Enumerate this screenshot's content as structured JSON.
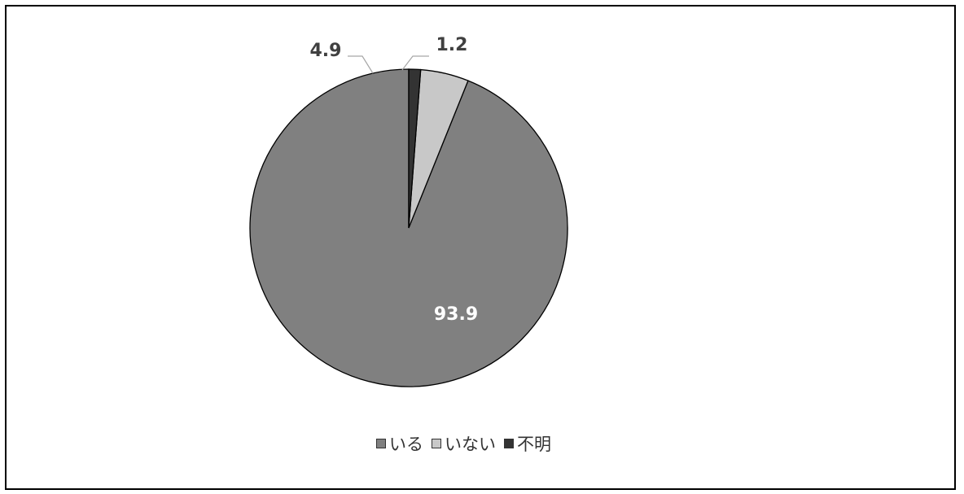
{
  "chart_data": {
    "type": "pie",
    "title": "",
    "slices": [
      {
        "label": "いる",
        "value": 93.9,
        "color": "#808080",
        "data_label": "93.9"
      },
      {
        "label": "いない",
        "value": 4.9,
        "color": "#c8c8c8",
        "data_label": "4.9"
      },
      {
        "label": "不明",
        "value": 1.2,
        "color": "#333333",
        "data_label": "1.2"
      }
    ],
    "start": "12 o'clock",
    "direction": "counter-clockwise",
    "legend_position": "bottom"
  },
  "legend": {
    "items": [
      {
        "label": "いる",
        "color": "#808080"
      },
      {
        "label": "いない",
        "color": "#c8c8c8"
      },
      {
        "label": "不明",
        "color": "#333333"
      }
    ]
  }
}
